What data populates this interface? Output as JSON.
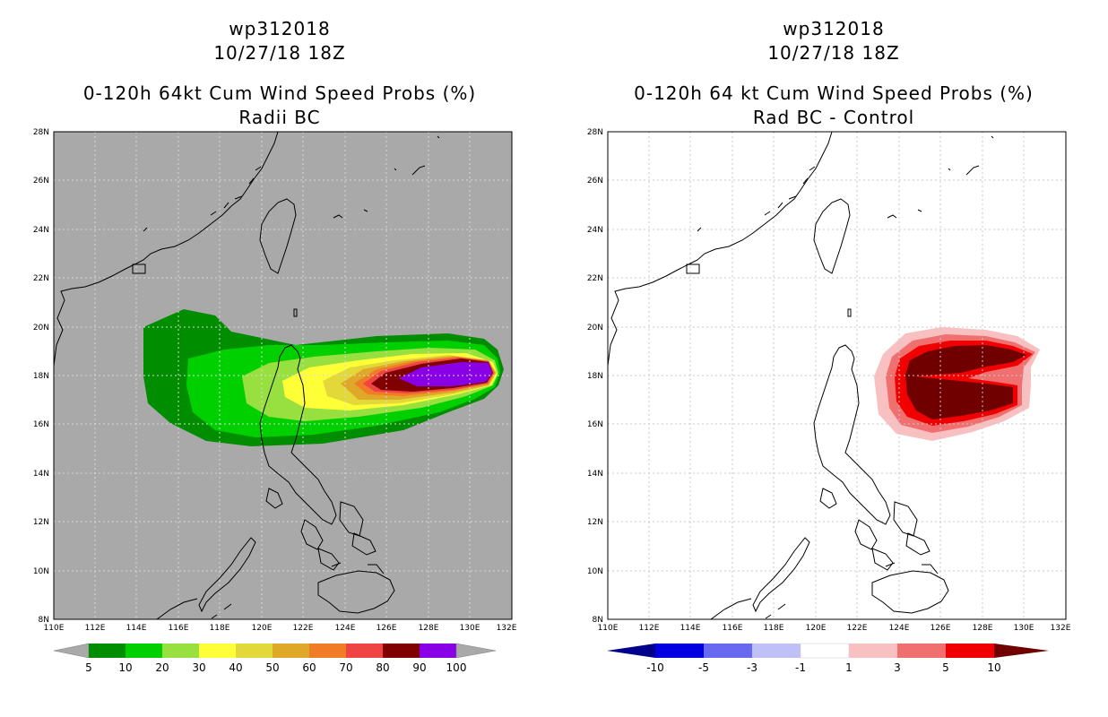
{
  "panels": [
    {
      "title1": "wp312018",
      "title2": "10/27/18 18Z",
      "title3": "0-120h 64kt Cum Wind Speed Probs (%)",
      "title4": "Radii BC",
      "background": "#a9a9a9",
      "lat_labels": [
        "28N",
        "26N",
        "24N",
        "22N",
        "20N",
        "18N",
        "16N",
        "14N",
        "12N",
        "10N",
        "8N"
      ],
      "lon_labels": [
        "110E",
        "112E",
        "114E",
        "116E",
        "118E",
        "120E",
        "122E",
        "124E",
        "126E",
        "128E",
        "130E",
        "132E"
      ],
      "colorbar": {
        "labels": [
          "5",
          "10",
          "20",
          "30",
          "40",
          "50",
          "60",
          "70",
          "80",
          "90",
          "100"
        ],
        "colors": [
          "#008e00",
          "#00d000",
          "#98e040",
          "#ffff38",
          "#e2d83a",
          "#e0a828",
          "#f07c28",
          "#f04444",
          "#800000",
          "#8a00e6"
        ],
        "left_arrow": "#a9a9a9",
        "right_arrow": "#a9a9a9"
      }
    },
    {
      "title1": "wp312018",
      "title2": "10/27/18 18Z",
      "title3": "0-120h 64 kt Cum Wind Speed Probs (%)",
      "title4": "Rad BC - Control",
      "background": "#ffffff",
      "lat_labels": [
        "28N",
        "26N",
        "24N",
        "22N",
        "20N",
        "18N",
        "16N",
        "14N",
        "12N",
        "10N",
        "8N"
      ],
      "lon_labels": [
        "110E",
        "112E",
        "114E",
        "116E",
        "118E",
        "120E",
        "122E",
        "124E",
        "126E",
        "128E",
        "130E",
        "132E"
      ],
      "colorbar": {
        "labels": [
          "-10",
          "-5",
          "-3",
          "-1",
          "1",
          "3",
          "5",
          "10"
        ],
        "colors": [
          "#0000e0",
          "#6868f0",
          "#c0c0f8",
          "#ffffff",
          "#f8c0c0",
          "#f07070",
          "#f00000"
        ],
        "left_arrow": "#00008c",
        "right_arrow": "#700000"
      }
    }
  ]
}
